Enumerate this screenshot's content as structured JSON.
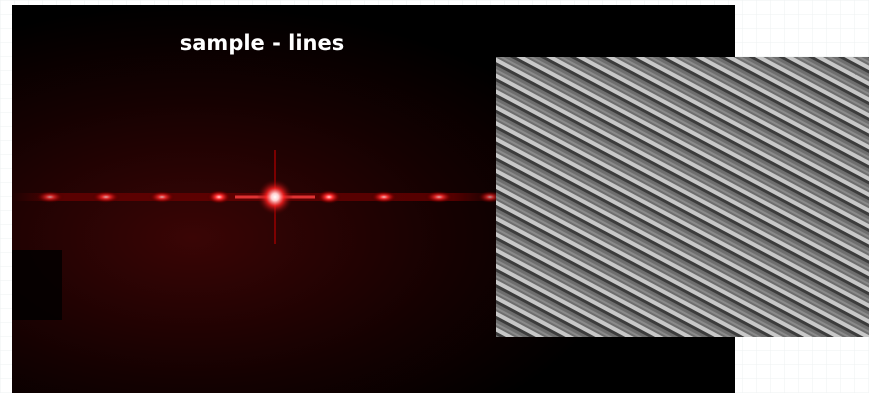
{
  "header": {
    "title": "sample - lines"
  }
}
